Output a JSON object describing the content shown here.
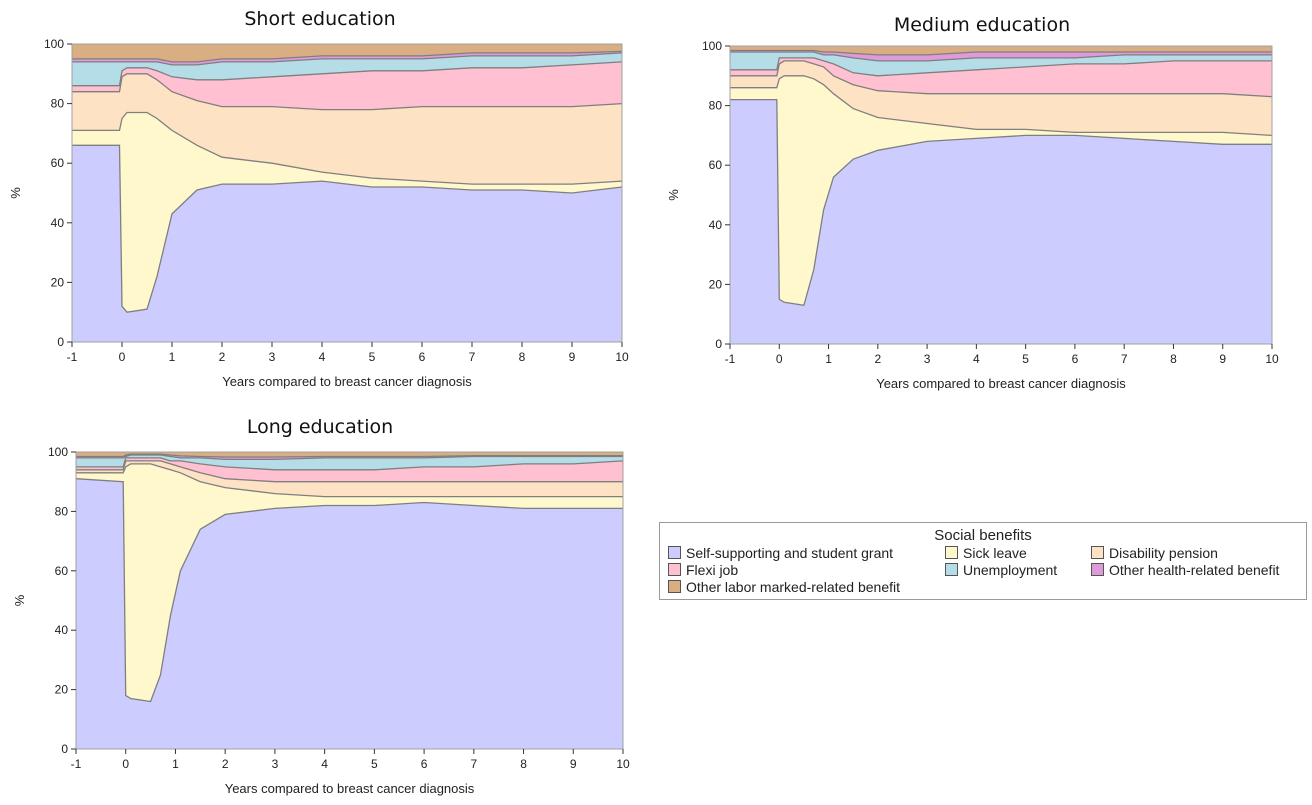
{
  "chart_data": [
    {
      "type": "area",
      "stacked": true,
      "title": "Short education",
      "xlabel": "Years compared to breast cancer diagnosis",
      "ylabel": "%",
      "xlim": [
        -1,
        10
      ],
      "ylim": [
        0,
        100
      ],
      "xticks": [
        -1,
        0,
        1,
        2,
        3,
        4,
        5,
        6,
        7,
        8,
        9,
        10
      ],
      "yticks": [
        0,
        20,
        40,
        60,
        80,
        100
      ],
      "x": [
        -1,
        -0.05,
        0,
        0.1,
        0.5,
        0.7,
        1,
        1.5,
        2,
        3,
        4,
        5,
        6,
        7,
        8,
        9,
        10
      ],
      "boundaries": [
        [
          66,
          66,
          12,
          10,
          11,
          22,
          43,
          51,
          53,
          53,
          54,
          52,
          52,
          51,
          51,
          50,
          52
        ],
        [
          71,
          71,
          75,
          77,
          77,
          75,
          71,
          66,
          62,
          60,
          57,
          55,
          54,
          53,
          53,
          53,
          54
        ],
        [
          84,
          84,
          89,
          90,
          90,
          88,
          84,
          81,
          79,
          79,
          78,
          78,
          79,
          79,
          79,
          79,
          80
        ],
        [
          86,
          86,
          91,
          92,
          92,
          91,
          89,
          88,
          88,
          89,
          90,
          91,
          91,
          92,
          92,
          93,
          94
        ],
        [
          94,
          94,
          94,
          94,
          94,
          94,
          93,
          93,
          94,
          94,
          95,
          95,
          95,
          96,
          96,
          96,
          97
        ],
        [
          95,
          95,
          95,
          95,
          95,
          95,
          94,
          94,
          95,
          95,
          96,
          96,
          96,
          97,
          97,
          97,
          97.5
        ],
        [
          100,
          100,
          100,
          100,
          100,
          100,
          100,
          100,
          100,
          100,
          100,
          100,
          100,
          100,
          100,
          100,
          100
        ]
      ]
    },
    {
      "type": "area",
      "stacked": true,
      "title": "Medium education",
      "xlabel": "Years compared to breast cancer diagnosis",
      "ylabel": "%",
      "xlim": [
        -1,
        10
      ],
      "ylim": [
        0,
        100
      ],
      "xticks": [
        -1,
        0,
        1,
        2,
        3,
        4,
        5,
        6,
        7,
        8,
        9,
        10
      ],
      "yticks": [
        0,
        20,
        40,
        60,
        80,
        100
      ],
      "x": [
        -1,
        -0.05,
        0,
        0.1,
        0.5,
        0.7,
        0.9,
        1.1,
        1.5,
        2,
        3,
        4,
        5,
        6,
        7,
        8,
        9,
        10
      ],
      "boundaries": [
        [
          82,
          82,
          15,
          14,
          13,
          25,
          45,
          56,
          62,
          65,
          68,
          69,
          70,
          70,
          69,
          68,
          67,
          67
        ],
        [
          86,
          86,
          89,
          90,
          90,
          89,
          87,
          84,
          79,
          76,
          74,
          72,
          72,
          71,
          71,
          71,
          71,
          70
        ],
        [
          90,
          90,
          94,
          95,
          95,
          94,
          93,
          90,
          87,
          85,
          84,
          84,
          84,
          84,
          84,
          84,
          84,
          83
        ],
        [
          92,
          92,
          96,
          96,
          96,
          96,
          95,
          94,
          91,
          90,
          91,
          92,
          93,
          94,
          94,
          95,
          95,
          95
        ],
        [
          98,
          98,
          98,
          98,
          98,
          98,
          97,
          97,
          96,
          95,
          95,
          96,
          96,
          96,
          97,
          97,
          97,
          97
        ],
        [
          98.5,
          98.5,
          98.5,
          98.5,
          98.5,
          98.5,
          98,
          98,
          97.5,
          97,
          97,
          98,
          98,
          98,
          98,
          98,
          98,
          98
        ],
        [
          100,
          100,
          100,
          100,
          100,
          100,
          100,
          100,
          100,
          100,
          100,
          100,
          100,
          100,
          100,
          100,
          100,
          100
        ]
      ]
    },
    {
      "type": "area",
      "stacked": true,
      "title": "Long education",
      "xlabel": "Years compared to breast cancer diagnosis",
      "ylabel": "%",
      "xlim": [
        -1,
        10
      ],
      "ylim": [
        0,
        100
      ],
      "xticks": [
        -1,
        0,
        1,
        2,
        3,
        4,
        5,
        6,
        7,
        8,
        9,
        10
      ],
      "yticks": [
        0,
        20,
        40,
        60,
        80,
        100
      ],
      "x": [
        -1,
        -0.05,
        0,
        0.1,
        0.5,
        0.7,
        0.9,
        1.1,
        1.5,
        2,
        3,
        4,
        5,
        6,
        7,
        8,
        9,
        10
      ],
      "boundaries": [
        [
          91,
          90,
          18,
          17,
          16,
          25,
          45,
          60,
          74,
          79,
          81,
          82,
          82,
          83,
          82,
          81,
          81,
          81
        ],
        [
          93,
          93,
          95,
          96,
          96,
          95,
          94,
          93,
          90,
          88,
          86,
          85,
          85,
          85,
          85,
          85,
          85,
          85
        ],
        [
          94,
          94,
          97,
          97,
          97,
          97,
          96,
          95,
          93,
          91,
          90,
          90,
          90,
          90,
          90,
          90,
          90,
          90
        ],
        [
          95,
          95,
          98,
          98,
          98,
          98,
          97,
          97,
          96,
          95,
          94,
          94,
          94,
          95,
          95,
          96,
          96,
          97
        ],
        [
          98,
          98,
          98.5,
          99,
          99,
          99,
          98.5,
          98,
          98,
          97.5,
          97.5,
          98,
          98,
          98,
          98.5,
          98.5,
          98.5,
          98.5
        ],
        [
          98.5,
          98.5,
          99,
          99.3,
          99.3,
          99.3,
          99,
          98.7,
          98.5,
          98.3,
          98.3,
          98.5,
          98.5,
          98.5,
          98.8,
          98.8,
          98.8,
          98.8
        ],
        [
          100,
          100,
          100,
          100,
          100,
          100,
          100,
          100,
          100,
          100,
          100,
          100,
          100,
          100,
          100,
          100,
          100,
          100
        ]
      ]
    }
  ],
  "series": [
    {
      "name": "Self-supporting and student grant",
      "color": "#ccccff"
    },
    {
      "name": "Sick leave",
      "color": "#fff8cc"
    },
    {
      "name": "Disability pension",
      "color": "#fde2c4"
    },
    {
      "name": "Flexi job",
      "color": "#ffc1d1"
    },
    {
      "name": "Unemployment",
      "color": "#b5dde8"
    },
    {
      "name": "Other health-related benefit",
      "color": "#de9ad9"
    },
    {
      "name": "Other labor marked-related benefit",
      "color": "#d8ae82"
    }
  ],
  "legend": {
    "title": "Social benefits",
    "placement": "right of bottom-left panel"
  }
}
